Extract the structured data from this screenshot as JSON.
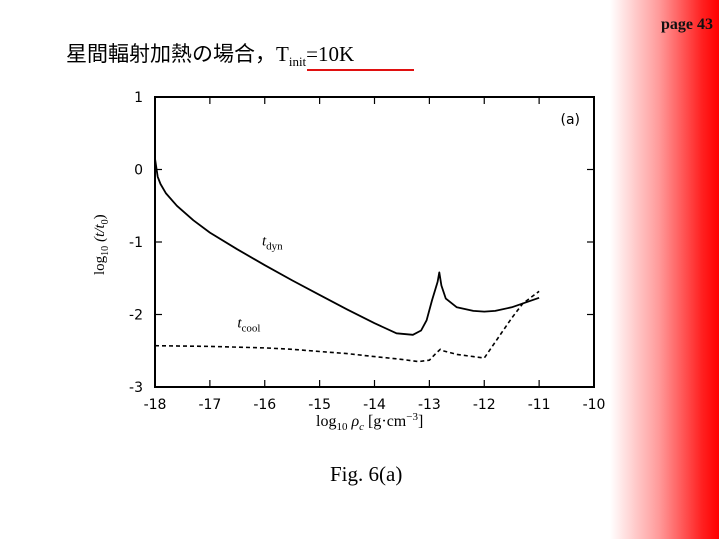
{
  "page": {
    "number_label": "page 43"
  },
  "title": {
    "text": "星間輻射加熱の場合，",
    "symbol": "T",
    "subscript": "init",
    "value": "=10K"
  },
  "caption": "Fig. 6(a)",
  "colors": {
    "accent": "#ff0000",
    "underline": "#e01010",
    "ink": "#000000"
  },
  "chart_data": {
    "type": "line",
    "panel_label": "(a)",
    "xlabel": {
      "prefix": "log",
      "sub": "10",
      "var": "ρ",
      "var_sub": "c",
      "unit": "[g·cm",
      "unit_sup": "−3",
      "unit_end": "]"
    },
    "ylabel": {
      "prefix": "log",
      "sub": "10",
      "body": "(t/t",
      "body_sub": "0",
      "body_end": ")"
    },
    "xlim": [
      -18,
      -10
    ],
    "ylim": [
      -3,
      1
    ],
    "x_ticks": [
      "-18",
      "-17",
      "-16",
      "-15",
      "-14",
      "-13",
      "-12",
      "-11",
      "-10"
    ],
    "y_ticks": [
      "1",
      "0",
      "-1",
      "-2",
      "-3"
    ],
    "grid": false,
    "series": [
      {
        "name": "t_dyn",
        "label_main": "t",
        "label_sub": "dyn",
        "style": "solid",
        "label_at": [
          -16.05,
          -1.05
        ],
        "x": [
          -18.0,
          -17.97,
          -17.95,
          -17.9,
          -17.8,
          -17.6,
          -17.3,
          -17.0,
          -16.5,
          -16.0,
          -15.5,
          -15.0,
          -14.5,
          -14.0,
          -13.6,
          -13.3,
          -13.15,
          -13.05,
          -12.95,
          -12.85,
          -12.82,
          -12.78,
          -12.7,
          -12.5,
          -12.2,
          -12.0,
          -11.8,
          -11.5,
          -11.0
        ],
        "y": [
          0.15,
          0.0,
          -0.1,
          -0.2,
          -0.33,
          -0.5,
          -0.7,
          -0.87,
          -1.1,
          -1.32,
          -1.53,
          -1.73,
          -1.93,
          -2.12,
          -2.26,
          -2.28,
          -2.22,
          -2.08,
          -1.8,
          -1.55,
          -1.42,
          -1.6,
          -1.78,
          -1.9,
          -1.95,
          -1.96,
          -1.95,
          -1.9,
          -1.77
        ]
      },
      {
        "name": "t_cool",
        "label_main": "t",
        "label_sub": "cool",
        "style": "dashed",
        "label_at": [
          -16.5,
          -2.18
        ],
        "x": [
          -18.0,
          -17.0,
          -16.0,
          -15.5,
          -15.0,
          -14.5,
          -14.0,
          -13.5,
          -13.2,
          -13.0,
          -12.9,
          -12.8,
          -12.75,
          -12.5,
          -12.2,
          -12.0,
          -11.8,
          -11.5,
          -11.3,
          -11.0
        ],
        "y": [
          -2.43,
          -2.44,
          -2.46,
          -2.48,
          -2.51,
          -2.54,
          -2.58,
          -2.62,
          -2.65,
          -2.63,
          -2.55,
          -2.48,
          -2.5,
          -2.55,
          -2.58,
          -2.6,
          -2.38,
          -2.05,
          -1.85,
          -1.68
        ]
      }
    ]
  }
}
